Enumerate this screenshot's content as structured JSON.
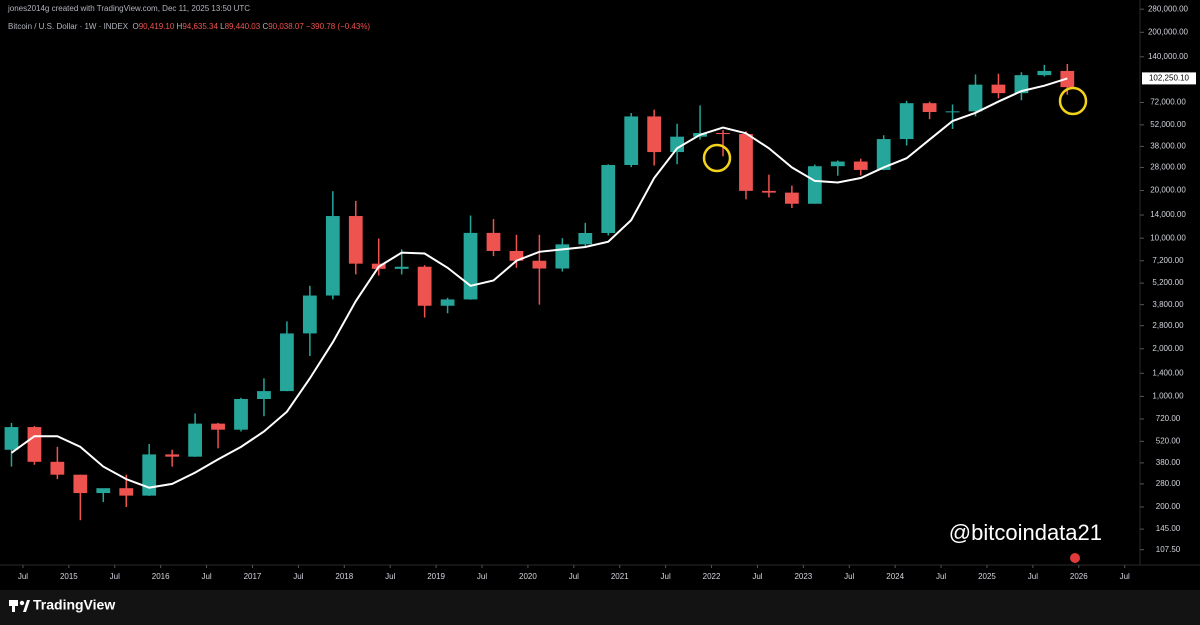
{
  "header": {
    "credit": "jones2014g created with TradingView.com, Dec 11, 2025 13:50 UTC",
    "symbol": "Bitcoin / U.S. Dollar · 1W · INDEX",
    "open_label": "O",
    "open": "90,419.10",
    "high_label": "H",
    "high": "94,635.34",
    "low_label": "L",
    "low": "89,440.03",
    "close_label": "C",
    "close": "90,038.07",
    "change": "−390.78 (−0.43%)"
  },
  "watermark": "@bitcoindata21",
  "footer": {
    "brand": "TradingView"
  },
  "chart_data": {
    "type": "candlestick",
    "log_scale": true,
    "up_color": "#26a69a",
    "down_color": "#ef5350",
    "ma_color": "#ffffff",
    "annotation_color": "#f2d21b",
    "xlim": [
      "2014-04",
      "2026-09"
    ],
    "xticks": [
      {
        "value": "2014-07",
        "label": "Jul"
      },
      {
        "value": "2015-01",
        "label": "2015"
      },
      {
        "value": "2015-07",
        "label": "Jul"
      },
      {
        "value": "2016-01",
        "label": "2016"
      },
      {
        "value": "2016-07",
        "label": "Jul"
      },
      {
        "value": "2017-01",
        "label": "2017"
      },
      {
        "value": "2017-07",
        "label": "Jul"
      },
      {
        "value": "2018-01",
        "label": "2018"
      },
      {
        "value": "2018-07",
        "label": "Jul"
      },
      {
        "value": "2019-01",
        "label": "2019"
      },
      {
        "value": "2019-07",
        "label": "Jul"
      },
      {
        "value": "2020-01",
        "label": "2020"
      },
      {
        "value": "2020-07",
        "label": "Jul"
      },
      {
        "value": "2021-01",
        "label": "2021"
      },
      {
        "value": "2021-07",
        "label": "Jul"
      },
      {
        "value": "2022-01",
        "label": "2022"
      },
      {
        "value": "2022-07",
        "label": "Jul"
      },
      {
        "value": "2023-01",
        "label": "2023"
      },
      {
        "value": "2023-07",
        "label": "Jul"
      },
      {
        "value": "2024-01",
        "label": "2024"
      },
      {
        "value": "2024-07",
        "label": "Jul"
      },
      {
        "value": "2025-01",
        "label": "2025"
      },
      {
        "value": "2025-07",
        "label": "Jul"
      },
      {
        "value": "2026-01",
        "label": "2026"
      },
      {
        "value": "2026-07",
        "label": "Jul"
      }
    ],
    "ylim": [
      86,
      320000
    ],
    "yticks": [
      {
        "value": 280000,
        "label": "280,000.00"
      },
      {
        "value": 200000,
        "label": "200,000.00"
      },
      {
        "value": 140000,
        "label": "140,000.00"
      },
      {
        "value": 72000,
        "label": "72,000.00"
      },
      {
        "value": 52000,
        "label": "52,000.00"
      },
      {
        "value": 38000,
        "label": "38,000.00"
      },
      {
        "value": 28000,
        "label": "28,000.00"
      },
      {
        "value": 20000,
        "label": "20,000.00"
      },
      {
        "value": 14000,
        "label": "14,000.00"
      },
      {
        "value": 10000,
        "label": "10,000.00"
      },
      {
        "value": 7200,
        "label": "7,200.00"
      },
      {
        "value": 5200,
        "label": "5,200.00"
      },
      {
        "value": 3800,
        "label": "3,800.00"
      },
      {
        "value": 2800,
        "label": "2,800.00"
      },
      {
        "value": 2000,
        "label": "2,000.00"
      },
      {
        "value": 1400,
        "label": "1,400.00"
      },
      {
        "value": 1000,
        "label": "1,000.00"
      },
      {
        "value": 720,
        "label": "720.00"
      },
      {
        "value": 520,
        "label": "520.00"
      },
      {
        "value": 380,
        "label": "380.00"
      },
      {
        "value": 280,
        "label": "280.00"
      },
      {
        "value": 200,
        "label": "200.00"
      },
      {
        "value": 145,
        "label": "145.00"
      },
      {
        "value": 107.5,
        "label": "107.50"
      }
    ],
    "x": [
      "2014-04",
      "2014-07",
      "2014-10",
      "2015-01",
      "2015-04",
      "2015-07",
      "2015-10",
      "2016-01",
      "2016-04",
      "2016-07",
      "2016-10",
      "2017-01",
      "2017-04",
      "2017-07",
      "2017-10",
      "2018-01",
      "2018-04",
      "2018-07",
      "2018-10",
      "2019-01",
      "2019-04",
      "2019-07",
      "2019-10",
      "2020-01",
      "2020-04",
      "2020-07",
      "2020-10",
      "2021-01",
      "2021-04",
      "2021-07",
      "2021-10",
      "2022-01",
      "2022-04",
      "2022-07",
      "2022-10",
      "2023-01",
      "2023-04",
      "2023-07",
      "2023-10",
      "2024-01",
      "2024-04",
      "2024-07",
      "2024-10",
      "2025-01",
      "2025-04",
      "2025-07",
      "2025-10"
    ],
    "open": [
      460,
      640,
      386,
      320,
      245,
      263,
      236,
      430,
      416,
      673,
      616,
      963,
      1080,
      2500,
      4340,
      13800,
      6900,
      6400,
      6600,
      3740,
      4100,
      10800,
      8300,
      7200,
      6430,
      9140,
      10780,
      29000,
      58800,
      35000,
      43800,
      46200,
      45500,
      19900,
      19400,
      16500,
      28500,
      30500,
      27000,
      42300,
      71300,
      62700,
      63300,
      93400,
      82500,
      107200,
      114000
    ],
    "high": [
      680,
      650,
      480,
      320,
      260,
      320,
      500,
      460,
      780,
      680,
      980,
      1300,
      2980,
      5000,
      19800,
      17200,
      9950,
      8500,
      6750,
      4200,
      13900,
      13200,
      10500,
      10500,
      10000,
      12500,
      29300,
      61800,
      64900,
      52900,
      69000,
      48200,
      47400,
      25200,
      21500,
      29200,
      31000,
      31800,
      44700,
      73800,
      72800,
      70000,
      108300,
      109500,
      111900,
      124500,
      126200
    ],
    "low": [
      360,
      370,
      300,
      165,
      215,
      200,
      235,
      360,
      415,
      470,
      600,
      750,
      1080,
      1800,
      4100,
      5900,
      5800,
      5900,
      3150,
      3350,
      4080,
      7700,
      6500,
      3800,
      6150,
      8900,
      10400,
      28100,
      28800,
      29300,
      42000,
      32900,
      17600,
      18100,
      15500,
      16500,
      24800,
      24900,
      26900,
      38500,
      56500,
      49000,
      58900,
      76600,
      74400,
      105300,
      80600
    ],
    "close": [
      640,
      386,
      320,
      245,
      263,
      236,
      430,
      416,
      673,
      616,
      963,
      1080,
      2500,
      4340,
      13800,
      6900,
      6400,
      6600,
      3740,
      4100,
      10800,
      8300,
      7200,
      6430,
      9140,
      10780,
      29000,
      58800,
      35000,
      43800,
      46200,
      45500,
      19900,
      19400,
      16500,
      28500,
      30500,
      27000,
      42300,
      71300,
      62700,
      63300,
      93400,
      82500,
      107200,
      114000,
      90038.07
    ],
    "ma": [
      440,
      560,
      560,
      480,
      360,
      300,
      265,
      280,
      330,
      400,
      480,
      600,
      800,
      1300,
      2200,
      4000,
      6600,
      8100,
      8000,
      6500,
      5000,
      5400,
      7200,
      8200,
      8500,
      8800,
      9500,
      13000,
      24000,
      37000,
      45000,
      50000,
      46000,
      37000,
      28000,
      23000,
      22500,
      24000,
      28000,
      32000,
      42000,
      55000,
      62000,
      73000,
      85000,
      92000,
      102250.1
    ],
    "ma_label": {
      "value": 102250.1,
      "label": "102,250.10"
    }
  }
}
